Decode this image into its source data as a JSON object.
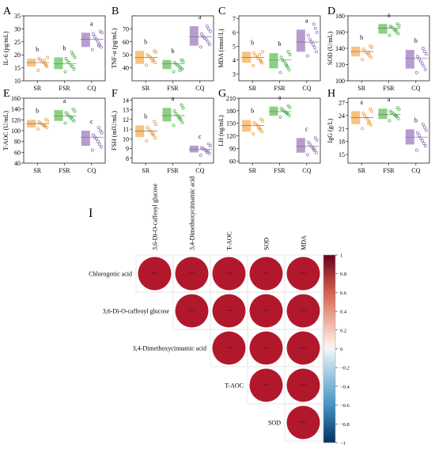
{
  "panel_labels": [
    "A",
    "B",
    "C",
    "D",
    "E",
    "F",
    "G",
    "H",
    "I"
  ],
  "colors": {
    "SR": "#f7b96a",
    "FSR": "#76c96b",
    "CQ": "#a98cc8",
    "corr_high": "#b2182b",
    "corr_mid": "#f7f7f7",
    "corr_low": "#053061"
  },
  "chart_data": [
    {
      "type": "box-scatter",
      "panel": "A",
      "ylabel": "IL-6 (pg/mL)",
      "categories": [
        "SR",
        "FSR",
        "CQ"
      ],
      "ylim": [
        10,
        35
      ],
      "yticks": [
        10,
        15,
        20,
        25,
        30,
        35
      ],
      "box": [
        [
          15.5,
          18.5,
          17
        ],
        [
          14.5,
          19,
          16.5
        ],
        [
          23,
          28.5,
          26
        ]
      ],
      "points": [
        [
          14,
          15.5,
          16.5,
          17,
          17.5,
          18,
          18.5,
          19,
          16,
          17.8
        ],
        [
          13.5,
          14.5,
          15.5,
          16,
          17,
          17.5,
          18.5,
          19,
          20,
          21
        ],
        [
          22,
          23,
          24,
          25,
          26,
          27,
          28,
          28.5,
          29,
          23.5
        ]
      ],
      "letters": [
        "b",
        "b",
        "a"
      ]
    },
    {
      "type": "box-scatter",
      "panel": "B",
      "ylabel": "TNF-α (pg/mL)",
      "categories": [
        "SR",
        "FSR",
        "CQ"
      ],
      "ylim": [
        30,
        80
      ],
      "yticks": [
        40,
        50,
        60,
        70
      ],
      "box": [
        [
          43,
          53,
          48
        ],
        [
          39,
          46,
          43
        ],
        [
          57,
          72,
          64
        ]
      ],
      "points": [
        [
          42,
          44,
          46,
          47,
          48,
          49,
          50,
          52,
          53,
          45
        ],
        [
          37,
          39,
          40,
          41,
          42,
          43,
          44,
          45,
          46,
          38
        ],
        [
          56,
          58,
          60,
          62,
          63,
          64,
          66,
          68,
          70,
          72
        ]
      ],
      "letters": [
        "b",
        "b",
        "a"
      ]
    },
    {
      "type": "box-scatter",
      "panel": "C",
      "ylabel": "MDA (nmol/L)",
      "categories": [
        "SR",
        "FSR",
        "CQ"
      ],
      "ylim": [
        2.5,
        7.2
      ],
      "yticks": [
        3,
        4,
        5,
        6,
        7
      ],
      "box": [
        [
          3.8,
          4.6,
          4.2
        ],
        [
          3.4,
          4.5,
          4
        ],
        [
          4.6,
          6.2,
          5.3
        ]
      ],
      "points": [
        [
          3.6,
          3.8,
          4,
          4.1,
          4.2,
          4.3,
          4.5,
          4.6,
          3.9,
          4.4
        ],
        [
          3.1,
          3.3,
          3.5,
          3.7,
          3.9,
          4,
          4.2,
          4.4,
          4.6,
          3.6
        ],
        [
          4.3,
          4.6,
          4.9,
          5.1,
          5.3,
          5.5,
          5.8,
          6,
          6.3,
          6.6
        ]
      ],
      "letters": [
        "b",
        "b",
        "a"
      ]
    },
    {
      "type": "box-scatter",
      "panel": "D",
      "ylabel": "SOD (U/mL)",
      "categories": [
        "SR",
        "FSR",
        "CQ"
      ],
      "ylim": [
        100,
        180
      ],
      "yticks": [
        100,
        120,
        140,
        160,
        180
      ],
      "box": [
        [
          130,
          142,
          136
        ],
        [
          158,
          170,
          165
        ],
        [
          115,
          138,
          128
        ]
      ],
      "points": [
        [
          126,
          129,
          131,
          133,
          135,
          137,
          139,
          141,
          143,
          134
        ],
        [
          156,
          158,
          160,
          162,
          164,
          166,
          167,
          168,
          170,
          163
        ],
        [
          110,
          114,
          118,
          121,
          124,
          127,
          130,
          133,
          136,
          140
        ]
      ],
      "letters": [
        "b",
        "a",
        "b"
      ]
    },
    {
      "type": "box-scatter",
      "panel": "E",
      "ylabel": "T-AOC (U/mL)",
      "categories": [
        "SR",
        "FSR",
        "CQ"
      ],
      "ylim": [
        40,
        160
      ],
      "yticks": [
        40,
        60,
        80,
        100,
        120,
        140,
        160
      ],
      "box": [
        [
          106,
          120,
          113
        ],
        [
          118,
          138,
          127
        ],
        [
          72,
          100,
          88
        ]
      ],
      "points": [
        [
          103,
          106,
          108,
          110,
          112,
          114,
          116,
          118,
          121,
          109
        ],
        [
          114,
          118,
          121,
          124,
          127,
          130,
          133,
          136,
          140,
          125
        ],
        [
          64,
          70,
          75,
          80,
          85,
          88,
          92,
          96,
          100,
          106
        ]
      ],
      "letters": [
        "b",
        "a",
        "c"
      ]
    },
    {
      "type": "box-scatter",
      "panel": "F",
      "ylabel": "FSH (mIU/mL)",
      "categories": [
        "SR",
        "FSR",
        "CQ"
      ],
      "ylim": [
        7.5,
        14.2
      ],
      "yticks": [
        8,
        9,
        10,
        11,
        12,
        13,
        14
      ],
      "box": [
        [
          10.2,
          11.4,
          10.8
        ],
        [
          11.8,
          13.2,
          12.4
        ],
        [
          8.6,
          9.3,
          8.9
        ]
      ],
      "points": [
        [
          9.8,
          10.1,
          10.4,
          10.6,
          10.8,
          11,
          11.2,
          11.5,
          11.8,
          10.5
        ],
        [
          11.4,
          11.7,
          12,
          12.2,
          12.4,
          12.6,
          12.9,
          13.2,
          13.5,
          12.1
        ],
        [
          8.3,
          8.5,
          8.7,
          8.8,
          8.9,
          9,
          9.1,
          9.3,
          9.5,
          8.6
        ]
      ],
      "letters": [
        "b",
        "a",
        "c"
      ]
    },
    {
      "type": "box-scatter",
      "panel": "G",
      "ylabel": "LH (ng/mL)",
      "categories": [
        "SR",
        "FSR",
        "CQ"
      ],
      "ylim": [
        55,
        210
      ],
      "yticks": [
        60,
        90,
        120,
        150,
        180,
        210
      ],
      "box": [
        [
          130,
          158,
          145
        ],
        [
          168,
          190,
          178
        ],
        [
          80,
          115,
          95
        ]
      ],
      "points": [
        [
          125,
          130,
          135,
          140,
          145,
          148,
          152,
          156,
          160,
          138
        ],
        [
          165,
          169,
          173,
          176,
          179,
          182,
          185,
          188,
          192,
          175
        ],
        [
          75,
          80,
          85,
          90,
          95,
          100,
          105,
          110,
          115,
          88
        ]
      ],
      "letters": [
        "b",
        "a",
        "c"
      ]
    },
    {
      "type": "box-scatter",
      "panel": "H",
      "ylabel": "IgG (g/L)",
      "categories": [
        "SR",
        "FSR",
        "CQ"
      ],
      "ylim": [
        13,
        28
      ],
      "yticks": [
        15,
        18,
        21,
        24,
        27
      ],
      "box": [
        [
          22,
          25,
          23.5
        ],
        [
          23.2,
          25.6,
          24.2
        ],
        [
          17.3,
          20.8,
          19
        ]
      ],
      "points": [
        [
          21,
          21.8,
          22.5,
          23,
          23.5,
          24,
          24.5,
          25,
          25.5,
          22.2
        ],
        [
          22.8,
          23.3,
          23.8,
          24.1,
          24.4,
          24.7,
          25,
          25.4,
          25.8,
          24
        ],
        [
          16,
          17,
          17.6,
          18.2,
          18.8,
          19.4,
          20,
          20.6,
          21.3,
          22
        ]
      ],
      "letters": [
        "a",
        "a",
        "b"
      ]
    },
    {
      "type": "heatmap",
      "panel": "I",
      "columns": [
        "3,6-Di-O-caffeoyl glucose",
        "3,4-Dimethoxycinnamic acid",
        "T-AOC",
        "SOD",
        "MDA"
      ],
      "rows": [
        "Chlorogenic acid",
        "3,6-Di-O-caffeoyl glucose",
        "3,4-Dimethoxycinnamic acid",
        "T-AOC",
        "SOD"
      ],
      "values": [
        [
          1,
          1,
          1,
          1,
          1
        ],
        [
          null,
          1,
          1,
          1,
          1
        ],
        [
          null,
          null,
          1,
          1,
          1
        ],
        [
          null,
          null,
          null,
          1,
          1
        ],
        [
          null,
          null,
          null,
          null,
          1
        ]
      ],
      "cell_label": "***",
      "colorbar_ticks": [
        "1",
        "0.8",
        "0.6",
        "0.4",
        "0.2",
        "0",
        "−0.2",
        "−0.4",
        "−0.6",
        "−0.8",
        "−1"
      ],
      "colorbar_range": [
        -1,
        1
      ]
    }
  ]
}
